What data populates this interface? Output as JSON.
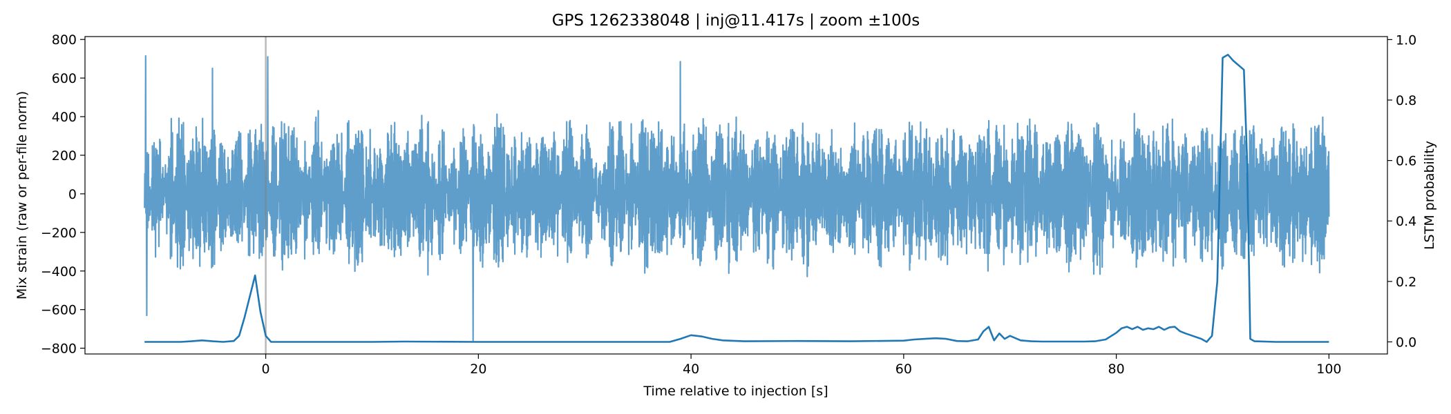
{
  "chart_data": {
    "type": "line",
    "title": "GPS 1262338048 | inj@11.417s | zoom ±100s",
    "xlabel": "Time relative to injection [s]",
    "ylabel_left": "Mix strain (raw or per-file norm)",
    "ylabel_right": "LSTM probability",
    "xlim": [
      -17,
      105.5
    ],
    "ylim_left": [
      -830,
      815
    ],
    "ylim_right": [
      -0.04,
      1.01
    ],
    "x_ticks": [
      0,
      20,
      40,
      60,
      80,
      100
    ],
    "y_ticks_left": [
      -800,
      -600,
      -400,
      -200,
      0,
      200,
      400,
      600,
      800
    ],
    "y_ticks_right": [
      0.0,
      0.2,
      0.4,
      0.6,
      0.8,
      1.0
    ],
    "x_tick_labels": [
      "0",
      "20",
      "40",
      "60",
      "80",
      "100"
    ],
    "y_tick_labels_left": [
      "−800",
      "−600",
      "−400",
      "−200",
      "0",
      "200",
      "400",
      "600",
      "800"
    ],
    "y_tick_labels_right": [
      "0.0",
      "0.2",
      "0.4",
      "0.6",
      "0.8",
      "1.0"
    ],
    "injection_marker_x": 0,
    "strain_x_range": [
      -11.4,
      100
    ],
    "strain_typical_amplitude": 250,
    "strain_extremes": [
      {
        "x": -11.3,
        "y": 715
      },
      {
        "x": -11.2,
        "y": -630
      },
      {
        "x": -5,
        "y": 650
      },
      {
        "x": 0.2,
        "y": 710
      },
      {
        "x": 19.5,
        "y": -760
      },
      {
        "x": 39,
        "y": 685
      }
    ],
    "series": [
      {
        "name": "",
        "axis": "left",
        "color": "#5f9ecb",
        "kind": "strain"
      },
      {
        "name": "",
        "axis": "right",
        "color": "#1f77b4",
        "kind": "probability",
        "x": [
          -11.4,
          -8,
          -7,
          -6,
          -5,
          -4,
          -3,
          -2.5,
          -2,
          -1.5,
          -1,
          -0.5,
          0,
          0.5,
          1,
          5,
          10,
          13,
          20,
          30,
          38,
          39,
          40,
          41,
          42,
          43,
          45,
          50,
          55,
          60,
          61,
          62,
          63,
          64,
          65,
          66,
          67,
          67.5,
          68,
          68.5,
          69,
          69.5,
          70,
          71,
          72,
          73,
          75,
          77,
          78,
          79,
          80,
          80.5,
          81,
          81.5,
          82,
          82.5,
          83,
          83.5,
          84,
          84.5,
          85,
          85.5,
          86,
          86.5,
          87,
          88,
          88.5,
          89,
          89.5,
          90,
          90.5,
          91,
          92,
          92.3,
          92.6,
          93,
          95,
          100
        ],
        "y": [
          0.0,
          0.0,
          0.002,
          0.005,
          0.002,
          0.0,
          0.003,
          0.02,
          0.08,
          0.15,
          0.22,
          0.1,
          0.02,
          0.0,
          0.0,
          0.0,
          0.0,
          0.001,
          0.0,
          0.0,
          0.0,
          0.01,
          0.022,
          0.018,
          0.01,
          0.005,
          0.002,
          0.003,
          0.002,
          0.004,
          0.008,
          0.01,
          0.012,
          0.01,
          0.003,
          0.002,
          0.008,
          0.035,
          0.05,
          0.005,
          0.028,
          0.01,
          0.02,
          0.005,
          0.002,
          0.001,
          0.001,
          0.001,
          0.002,
          0.008,
          0.03,
          0.045,
          0.05,
          0.042,
          0.05,
          0.04,
          0.045,
          0.042,
          0.05,
          0.04,
          0.048,
          0.05,
          0.035,
          0.028,
          0.022,
          0.01,
          0.0,
          0.02,
          0.2,
          0.94,
          0.95,
          0.93,
          0.9,
          0.6,
          0.01,
          0.002,
          0.0,
          0.0
        ]
      }
    ],
    "grid": false,
    "legend": "none"
  }
}
